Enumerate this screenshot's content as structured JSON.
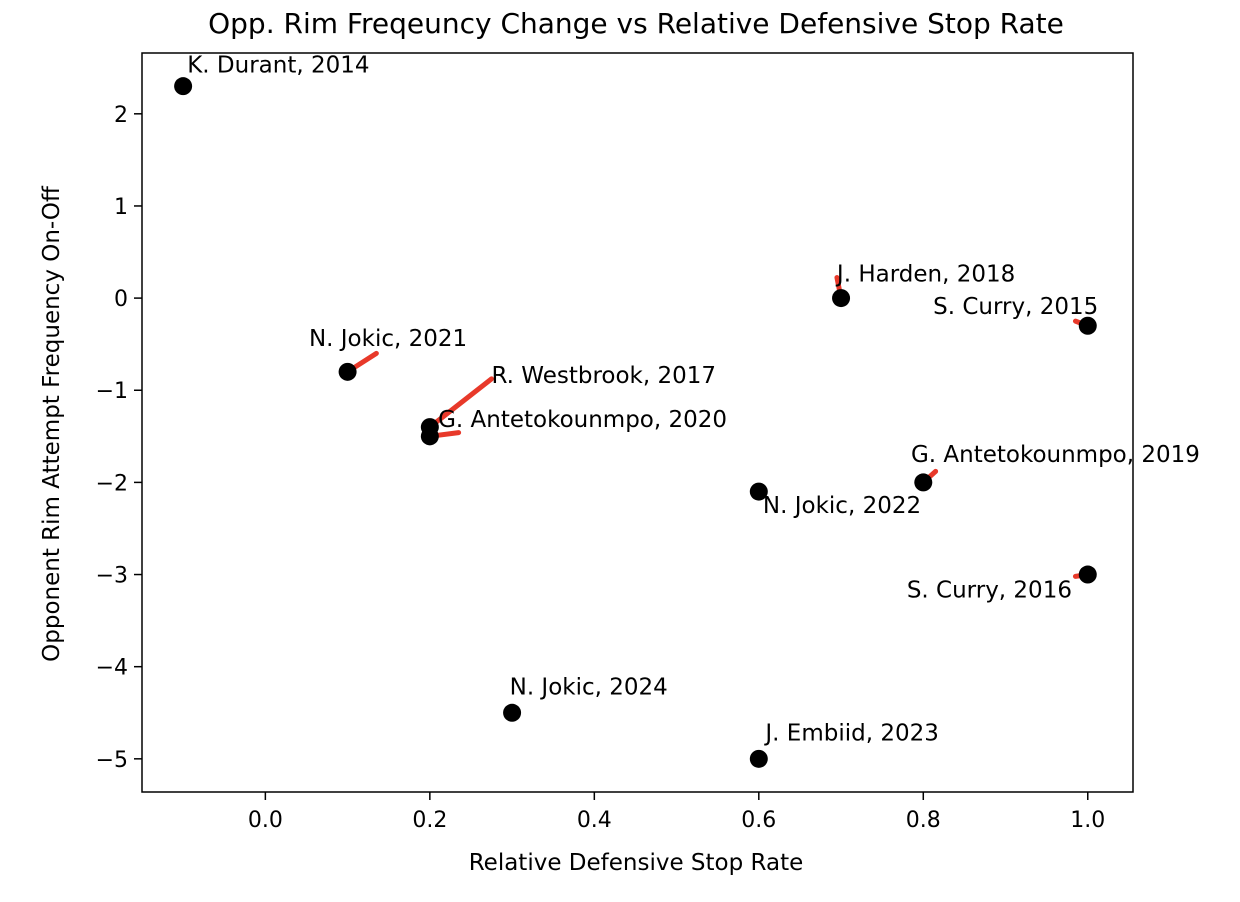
{
  "chart_data": {
    "type": "scatter",
    "title": "Opp. Rim Freqeuncy Change vs Relative Defensive Stop Rate",
    "xlabel": "Relative Defensive Stop Rate",
    "ylabel": "Opponent Rim Attempt Frequency On-Off",
    "xlim": [
      -0.15,
      1.055
    ],
    "ylim": [
      -5.36,
      2.66
    ],
    "xticks": [
      0.0,
      0.2,
      0.4,
      0.6,
      0.8,
      1.0
    ],
    "xtick_labels": [
      "0.0",
      "0.2",
      "0.4",
      "0.6",
      "0.8",
      "1.0"
    ],
    "yticks": [
      2,
      1,
      0,
      -1,
      -2,
      -3,
      -4,
      -5
    ],
    "ytick_labels": [
      "2",
      "1",
      "0",
      "−1",
      "−2",
      "−3",
      "−4",
      "−5"
    ],
    "grid": false,
    "marker_color": "#000000",
    "connector_color": "#e8392a",
    "points": [
      {
        "label": "K. Durant, 2014",
        "x": -0.1,
        "y": 2.3,
        "lx": -0.095,
        "ly": 2.45,
        "anchor": "start",
        "connector": false
      },
      {
        "label": "J. Harden, 2018",
        "x": 0.7,
        "y": 0.0,
        "lx": 0.695,
        "ly": 0.18,
        "anchor": "start",
        "connector": true
      },
      {
        "label": "S. Curry, 2015",
        "x": 1.0,
        "y": -0.3,
        "lx": 0.812,
        "ly": -0.17,
        "anchor": "start",
        "connector": true
      },
      {
        "label": "N. Jokic, 2021",
        "x": 0.1,
        "y": -0.8,
        "lx": 0.053,
        "ly": -0.52,
        "anchor": "start",
        "connector": true
      },
      {
        "label": "R. Westbrook, 2017",
        "x": 0.2,
        "y": -1.4,
        "lx": 0.275,
        "ly": -0.92,
        "anchor": "start",
        "connector": true
      },
      {
        "label": "G. Antetokounmpo, 2020",
        "x": 0.2,
        "y": -1.5,
        "lx": 0.21,
        "ly": -1.4,
        "anchor": "start",
        "connector": true
      },
      {
        "label": "G. Antetokounmpo, 2019",
        "x": 0.8,
        "y": -2.0,
        "lx": 0.785,
        "ly": -1.78,
        "anchor": "start",
        "connector": true
      },
      {
        "label": "N. Jokic, 2022",
        "x": 0.6,
        "y": -2.1,
        "lx": 0.605,
        "ly": -2.33,
        "anchor": "start",
        "connector": false
      },
      {
        "label": "S. Curry, 2016",
        "x": 1.0,
        "y": -3.0,
        "lx": 0.78,
        "ly": -3.25,
        "anchor": "start",
        "connector": true
      },
      {
        "label": "N. Jokic, 2024",
        "x": 0.3,
        "y": -4.5,
        "lx": 0.297,
        "ly": -4.3,
        "anchor": "start",
        "connector": false
      },
      {
        "label": "J. Embiid, 2023",
        "x": 0.6,
        "y": -5.0,
        "lx": 0.608,
        "ly": -4.8,
        "anchor": "start",
        "connector": false
      }
    ]
  }
}
